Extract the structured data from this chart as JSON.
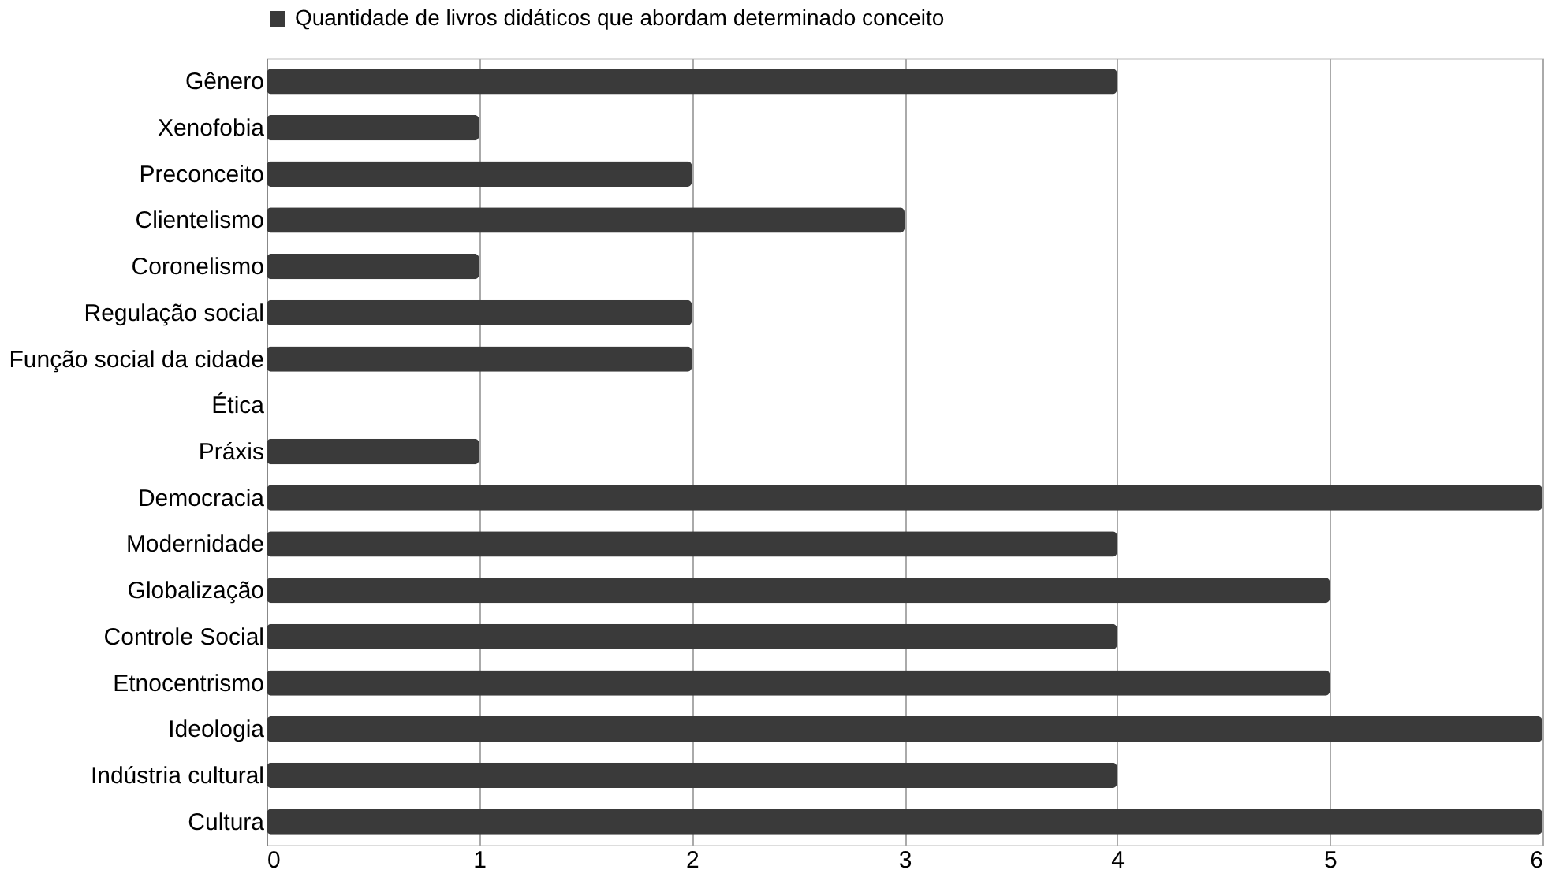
{
  "chart_data": {
    "type": "bar",
    "orientation": "horizontal",
    "categories": [
      "Gênero",
      "Xenofobia",
      "Preconceito",
      "Clientelismo",
      "Coronelismo",
      "Regulação social",
      "Função social da cidade",
      "Ética",
      "Práxis",
      "Democracia",
      "Modernidade",
      "Globalização",
      "Controle Social",
      "Etnocentrismo",
      "Ideologia",
      "Indústria cultural",
      "Cultura"
    ],
    "series": [
      {
        "name": "Quantidade de livros didáticos que abordam determinado conceito",
        "color": "#3a3a3a",
        "values": [
          4,
          1,
          2,
          3,
          1,
          2,
          2,
          0,
          1,
          6,
          4,
          5,
          4,
          5,
          6,
          4,
          6
        ]
      }
    ],
    "xlim": [
      0,
      6
    ],
    "xticks": [
      0,
      1,
      2,
      3,
      4,
      5,
      6
    ],
    "grid": "x",
    "legend": "top"
  }
}
